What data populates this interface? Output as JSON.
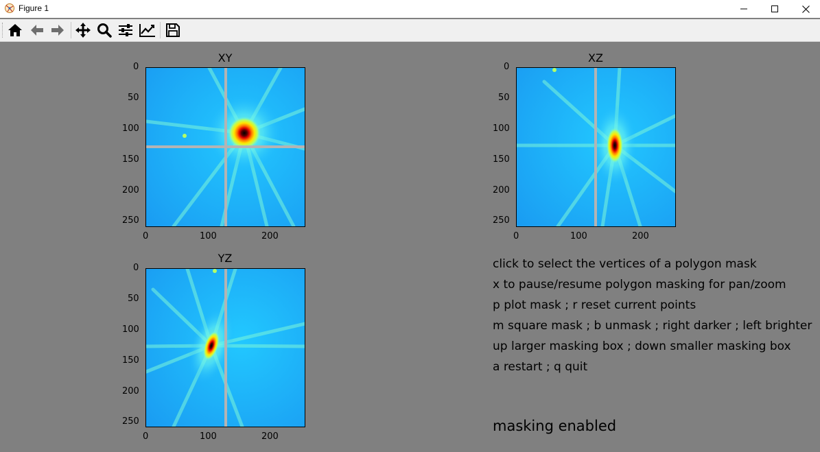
{
  "window": {
    "title": "Figure 1"
  },
  "toolbar": {
    "buttons": [
      {
        "name": "home-icon",
        "label": "Home"
      },
      {
        "name": "back-icon",
        "label": "Back"
      },
      {
        "name": "forward-icon",
        "label": "Forward"
      },
      {
        "name": "pan-icon",
        "label": "Pan"
      },
      {
        "name": "zoom-icon",
        "label": "Zoom"
      },
      {
        "name": "configure-subplots-icon",
        "label": "Subplots"
      },
      {
        "name": "edit-axis-icon",
        "label": "Customize"
      },
      {
        "name": "save-icon",
        "label": "Save"
      }
    ]
  },
  "plots": {
    "xy": {
      "title": "XY",
      "xticks": [
        "0",
        "100",
        "200"
      ],
      "yticks": [
        "0",
        "50",
        "100",
        "150",
        "200",
        "250"
      ]
    },
    "xz": {
      "title": "XZ",
      "xticks": [
        "0",
        "100",
        "200"
      ],
      "yticks": [
        "0",
        "50",
        "100",
        "150",
        "200",
        "250"
      ]
    },
    "yz": {
      "title": "YZ",
      "xticks": [
        "0",
        "100",
        "200"
      ],
      "yticks": [
        "0",
        "50",
        "100",
        "150",
        "200",
        "250"
      ]
    }
  },
  "instructions": [
    "click to select the vertices of a polygon mask",
    "x to pause/resume polygon masking for pan/zoom",
    "p plot mask ; r reset current points",
    "m square mask ; b unmask ; right darker ; left brighter",
    "up larger masking box ; down smaller masking box",
    "a restart ; q quit"
  ],
  "status": "masking enabled",
  "colors": {
    "background": "#808080",
    "field": "#21b4ff",
    "mask_line": "#b4b4b4"
  }
}
